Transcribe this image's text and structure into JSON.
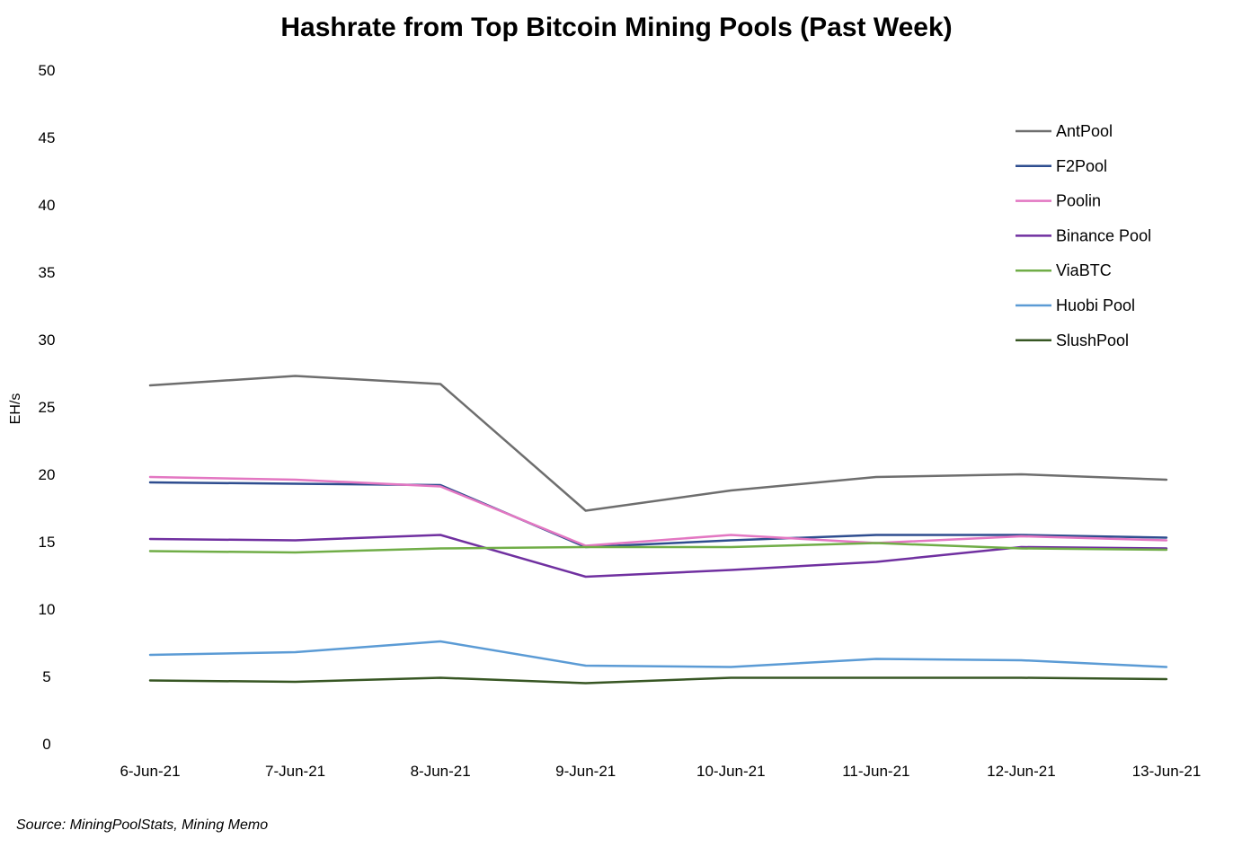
{
  "chart_data": {
    "type": "line",
    "title": "Hashrate from Top Bitcoin Mining Pools (Past Week)",
    "ylabel": "EH/s",
    "xlabel": "",
    "ylim": [
      0,
      50
    ],
    "yticks": [
      "0",
      "5",
      "10",
      "15",
      "20",
      "25",
      "30",
      "35",
      "40",
      "45",
      "50"
    ],
    "categories": [
      "6-Jun-21",
      "7-Jun-21",
      "8-Jun-21",
      "9-Jun-21",
      "10-Jun-21",
      "11-Jun-21",
      "12-Jun-21",
      "13-Jun-21"
    ],
    "grid": false,
    "legend_position": "top-right",
    "series": [
      {
        "name": "AntPool",
        "color": "#6e6e6e",
        "values": [
          26.6,
          27.3,
          26.7,
          17.3,
          18.8,
          19.8,
          20.0,
          19.6
        ]
      },
      {
        "name": "F2Pool",
        "color": "#2e4d8f",
        "values": [
          19.4,
          19.3,
          19.2,
          14.6,
          15.1,
          15.5,
          15.5,
          15.3
        ]
      },
      {
        "name": "Poolin",
        "color": "#e377c2",
        "values": [
          19.8,
          19.6,
          19.1,
          14.7,
          15.5,
          14.9,
          15.4,
          15.1
        ]
      },
      {
        "name": "Binance Pool",
        "color": "#7030a0",
        "values": [
          15.2,
          15.1,
          15.5,
          12.4,
          12.9,
          13.5,
          14.6,
          14.5
        ]
      },
      {
        "name": "ViaBTC",
        "color": "#70ad47",
        "values": [
          14.3,
          14.2,
          14.5,
          14.6,
          14.6,
          14.9,
          14.5,
          14.4
        ]
      },
      {
        "name": "Huobi Pool",
        "color": "#5b9bd5",
        "values": [
          6.6,
          6.8,
          7.6,
          5.8,
          5.7,
          6.3,
          6.2,
          5.7
        ]
      },
      {
        "name": "SlushPool",
        "color": "#375623",
        "values": [
          4.7,
          4.6,
          4.9,
          4.5,
          4.9,
          4.9,
          4.9,
          4.8
        ]
      }
    ]
  },
  "source": "Source: MiningPoolStats, Mining Memo"
}
